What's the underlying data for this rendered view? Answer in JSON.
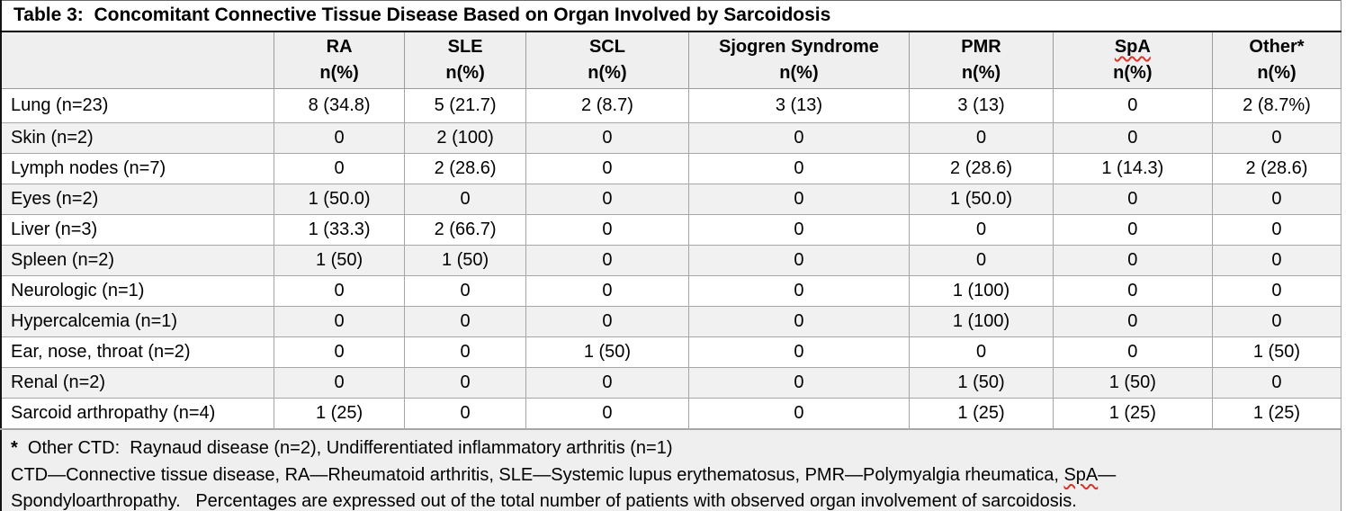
{
  "title": "Table 3:  Concomitant Connective Tissue Disease Based on Organ Involved by Sarcoidosis",
  "table": {
    "columns": [
      {
        "label": "RA",
        "sub": "n(%)",
        "misspelled": false
      },
      {
        "label": "SLE",
        "sub": "n(%)",
        "misspelled": false
      },
      {
        "label": "SCL",
        "sub": "n(%)",
        "misspelled": false
      },
      {
        "label": "Sjogren Syndrome",
        "sub": "n(%)",
        "misspelled": false
      },
      {
        "label": "PMR",
        "sub": "n(%)",
        "misspelled": false
      },
      {
        "label": "SpA",
        "sub": "n(%)",
        "misspelled": true
      },
      {
        "label": "Other*",
        "sub": "n(%)",
        "misspelled": false
      }
    ],
    "rows": [
      {
        "organ": "Lung (n=23)",
        "values": [
          "8 (34.8)",
          "5 (21.7)",
          "2 (8.7)",
          "3 (13)",
          "3 (13)",
          "0",
          "2 (8.7%)"
        ]
      },
      {
        "organ": "Skin (n=2)",
        "values": [
          "0",
          "2 (100)",
          "0",
          "0",
          "0",
          "0",
          "0"
        ]
      },
      {
        "organ": "Lymph nodes (n=7)",
        "values": [
          "0",
          "2 (28.6)",
          "0",
          "0",
          "2 (28.6)",
          "1 (14.3)",
          "2 (28.6)"
        ]
      },
      {
        "organ": "Eyes (n=2)",
        "values": [
          "1 (50.0)",
          "0",
          "0",
          "0",
          "1 (50.0)",
          "0",
          "0"
        ]
      },
      {
        "organ": "Liver (n=3)",
        "values": [
          "1 (33.3)",
          "2 (66.7)",
          "0",
          "0",
          "0",
          "0",
          "0"
        ]
      },
      {
        "organ": "Spleen (n=2)",
        "values": [
          "1 (50)",
          "1 (50)",
          "0",
          "0",
          "0",
          "0",
          "0"
        ]
      },
      {
        "organ": "Neurologic (n=1)",
        "values": [
          "0",
          "0",
          "0",
          "0",
          "1 (100)",
          "0",
          "0"
        ]
      },
      {
        "organ": "Hypercalcemia (n=1)",
        "values": [
          "0",
          "0",
          "0",
          "0",
          "1 (100)",
          "0",
          "0"
        ]
      },
      {
        "organ": "Ear, nose, throat (n=2)",
        "values": [
          "0",
          "0",
          "1 (50)",
          "0",
          "0",
          "0",
          "1 (50)"
        ]
      },
      {
        "organ": "Renal (n=2)",
        "values": [
          "0",
          "0",
          "0",
          "0",
          "1 (50)",
          "1 (50)",
          "0"
        ]
      },
      {
        "organ": "Sarcoid arthropathy (n=4)",
        "values": [
          "1 (25)",
          "0",
          "0",
          "0",
          "1 (25)",
          "1 (25)",
          "1 (25)"
        ]
      }
    ]
  },
  "footnotes": {
    "star": "*",
    "other_ctd": "  Other CTD:  Raynaud disease (n=2), Undifferentiated inflammatory arthritis (n=1)",
    "abbrev_before": "CTD—Connective tissue disease, RA—Rheumatoid arthritis, SLE—Systemic lupus erythematosus, PMR—Polymyalgia rheumatica, ",
    "abbrev_spa": "SpA",
    "abbrev_dash": "—",
    "continuation": "Spondyloarthropathy.   Percentages are expressed out of the total number of patients with observed organ involvement of sarcoidosis."
  },
  "colors": {
    "header_shading": "#efefef",
    "band_shading": "#f1f1f1",
    "grid_border": "#a6a6a6",
    "title_rule": "#000000",
    "spellcheck_underline": "#d8342a"
  }
}
